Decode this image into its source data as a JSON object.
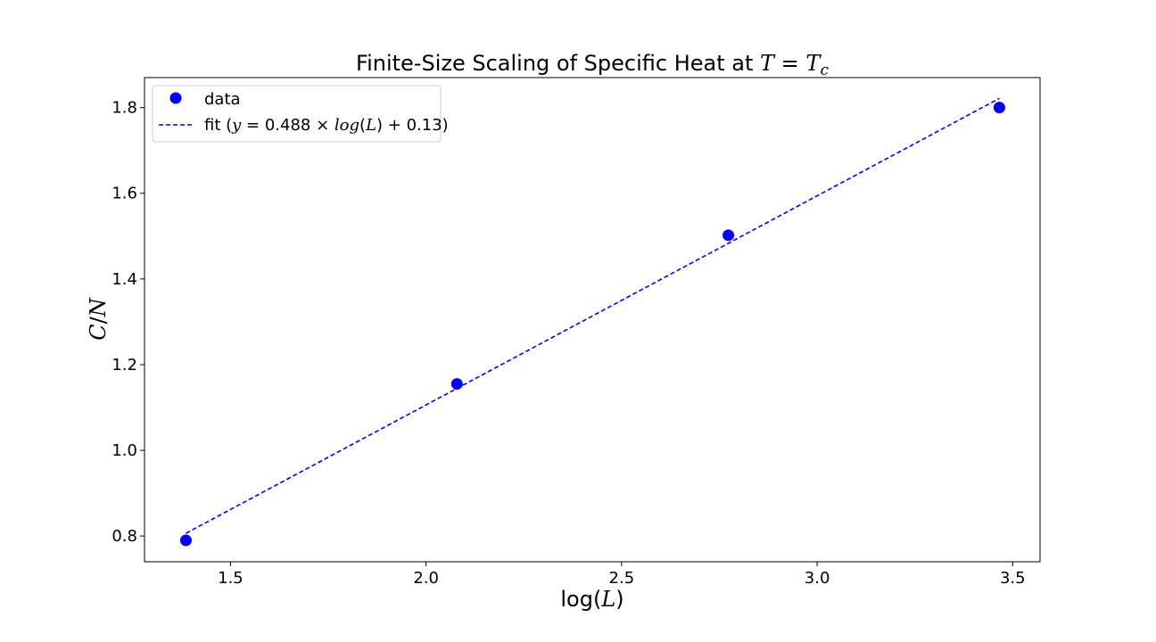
{
  "chart_data": {
    "type": "scatter",
    "title": "Finite-Size Scaling of Specific Heat at T = T_c",
    "xlabel": "log(L)",
    "ylabel": "C/N",
    "xlim": [
      1.28,
      3.57
    ],
    "ylim": [
      0.74,
      1.87
    ],
    "xticks": [
      1.5,
      2.0,
      2.5,
      3.0,
      3.5
    ],
    "yticks": [
      0.8,
      1.0,
      1.2,
      1.4,
      1.6,
      1.8
    ],
    "xtick_labels": [
      "1.5",
      "2.0",
      "2.5",
      "3.0",
      "3.5"
    ],
    "ytick_labels": [
      "0.8",
      "1.0",
      "1.2",
      "1.4",
      "1.6",
      "1.8"
    ],
    "grid": false,
    "legend_position": "top-left",
    "series": [
      {
        "name": "data",
        "kind": "scatter",
        "color": "#0000ff",
        "x": [
          1.386,
          2.079,
          2.773,
          3.466
        ],
        "y": [
          0.79,
          1.155,
          1.502,
          1.8
        ]
      },
      {
        "name": "fit (y = 0.488 × log(L) + 0.13)",
        "kind": "line",
        "style": "dashed",
        "color": "#0000ff",
        "slope": 0.488,
        "intercept": 0.13,
        "x": [
          1.386,
          3.466
        ]
      }
    ]
  }
}
